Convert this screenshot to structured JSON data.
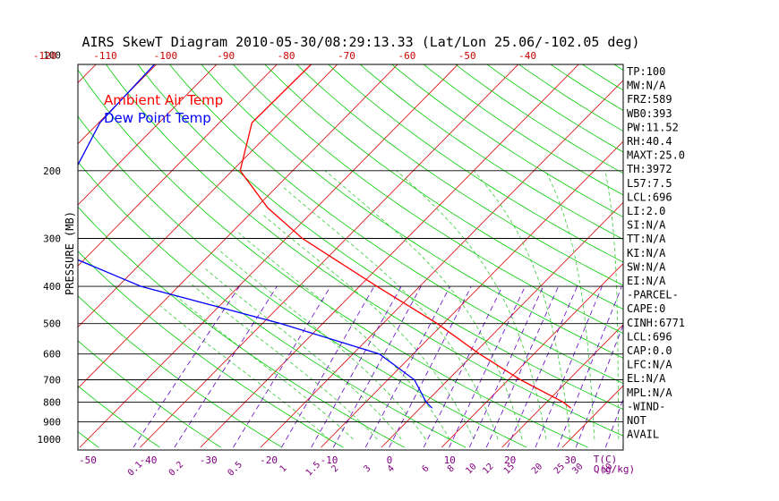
{
  "chart_data": {
    "type": "line",
    "title": "AIRS SkewT Diagram 2010-05-30/08:29:13.33 (Lat/Lon 25.06/-102.05 deg)",
    "ylabel": "PRESSURE (MB)",
    "xlabel": "T(C)",
    "mixing_ratio_label": "Q(g/kg)",
    "ylim": [
      1000,
      100
    ],
    "y_scale": "log",
    "xlim_bottom": [
      -50,
      40
    ],
    "pressure_levels": [
      100,
      200,
      300,
      400,
      500,
      600,
      700,
      800,
      900,
      1000
    ],
    "pressure_lines": [
      200,
      300,
      400,
      500,
      600,
      700,
      800,
      900
    ],
    "bottom_ticks": [
      -50,
      -40,
      -30,
      -20,
      -10,
      0,
      10,
      20,
      30
    ],
    "top_ticks": [
      -120,
      -110,
      -100,
      -90,
      -80,
      -70,
      -60,
      -50,
      -40
    ],
    "mixing_ratio_ticks": [
      "0.1",
      "0.2",
      "0.5",
      "1",
      "1.5",
      "2",
      "3",
      "4",
      "6",
      "8",
      "10",
      "12",
      "15",
      "20",
      "25",
      "30",
      "40"
    ],
    "grid": true,
    "legend_placement": "top-left",
    "series": [
      {
        "name": "Ambient Air Temp",
        "color": "#ff0000",
        "pressure": [
          100,
          150,
          200,
          250,
          300,
          400,
          500,
          600,
          700,
          800,
          830
        ],
        "temperature": [
          -74.3,
          -74.6,
          -68.7,
          -58.0,
          -47.3,
          -27.1,
          -11.0,
          1.0,
          12.0,
          22.7,
          25.0
        ]
      },
      {
        "name": "Dew Point Temp",
        "color": "#0000ff",
        "pressure": [
          100,
          150,
          200,
          250,
          300,
          400,
          500,
          600,
          700,
          800,
          830
        ],
        "temperature": [
          -100.4,
          -99.8,
          -96.1,
          -93.0,
          -93.0,
          -66.2,
          -36.9,
          -15.6,
          -5.6,
          0.0,
          2.0
        ]
      }
    ]
  },
  "indices": [
    "TP:100",
    "MW:N/A",
    "FRZ:589",
    "WB0:393",
    "PW:11.52",
    "RH:40.4",
    "MAXT:25.0",
    "TH:3972",
    "L57:7.5",
    "LCL:696",
    "LI:2.0",
    "SI:N/A",
    "TT:N/A",
    "KI:N/A",
    "SW:N/A",
    "EI:N/A",
    "-PARCEL-",
    "CAPE:0",
    "CINH:6771",
    "LCL:696",
    "CAP:0.0",
    "LFC:N/A",
    "EL:N/A",
    "MPL:N/A",
    "-WIND-",
    "NOT",
    "AVAIL"
  ],
  "colors": {
    "temperature_line": "#ff0000",
    "dewpoint_line": "#0000ff",
    "isotherms": "#dd0000",
    "dry_adiabats": "#00cc00",
    "moist_adiabats": "#33cc33",
    "mixing_ratio": "#6600cc",
    "axis_labels": "#800080"
  }
}
